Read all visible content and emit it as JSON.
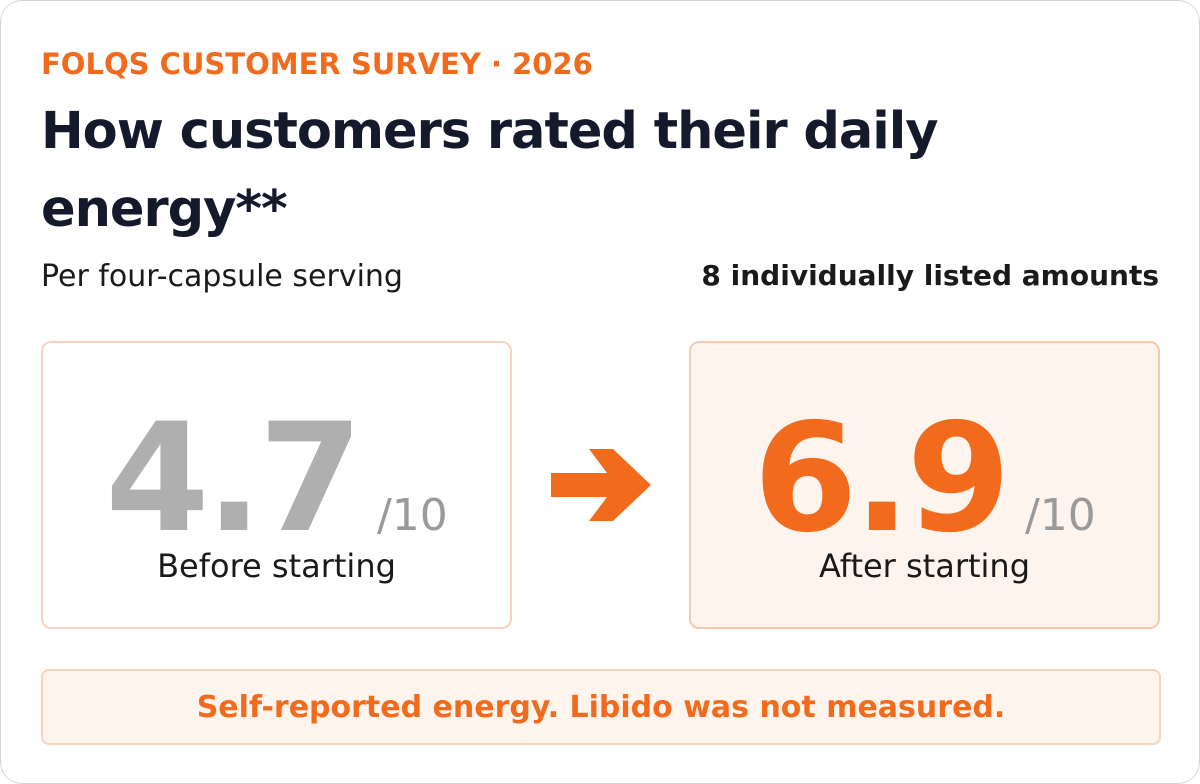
{
  "eyebrow": "FOLQS CUSTOMER SURVEY · 2026",
  "title": "How customers rated their daily energy**",
  "subtitle": "Per four-capsule serving",
  "count_label": "8 individually listed amounts",
  "before": {
    "score": "4.7",
    "out_of": "/10",
    "label": "Before starting"
  },
  "after": {
    "score": "6.9",
    "out_of": "/10",
    "label": "After starting"
  },
  "note": "Self-reported energy. Libido was not measured.",
  "icons": {
    "transition": "arrow-right-icon"
  },
  "colors": {
    "accent": "#f26b1d",
    "muted_score": "#afafaf",
    "text": "#141a2b",
    "soft_fill": "#fef4ee"
  }
}
